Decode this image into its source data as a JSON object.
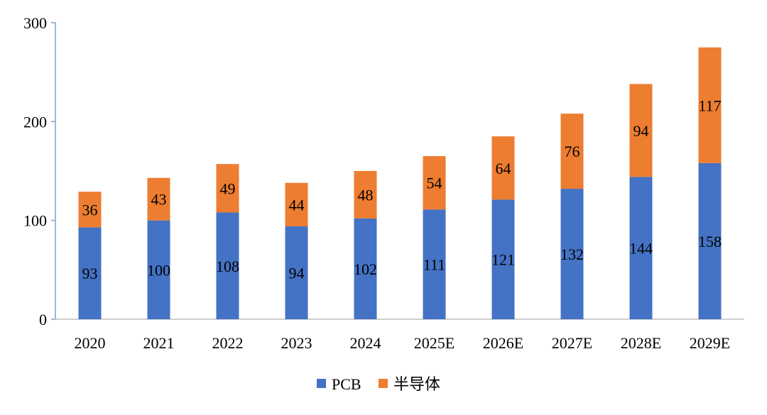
{
  "chart_data": {
    "type": "bar",
    "stacked": true,
    "categories": [
      "2020",
      "2021",
      "2022",
      "2023",
      "2024",
      "2025E",
      "2026E",
      "2027E",
      "2028E",
      "2029E"
    ],
    "series": [
      {
        "name": "PCB",
        "values": [
          93,
          100,
          108,
          94,
          102,
          111,
          121,
          132,
          144,
          158
        ],
        "color": "#4472c4"
      },
      {
        "name": "半导体",
        "values": [
          36,
          43,
          49,
          44,
          48,
          54,
          64,
          76,
          94,
          117
        ],
        "color": "#ed7d31"
      }
    ],
    "ylim": [
      0,
      300
    ],
    "yticks": [
      "0",
      "100",
      "200",
      "300"
    ],
    "grid": false,
    "legend_position": "bottom-center",
    "data_labels": true
  }
}
